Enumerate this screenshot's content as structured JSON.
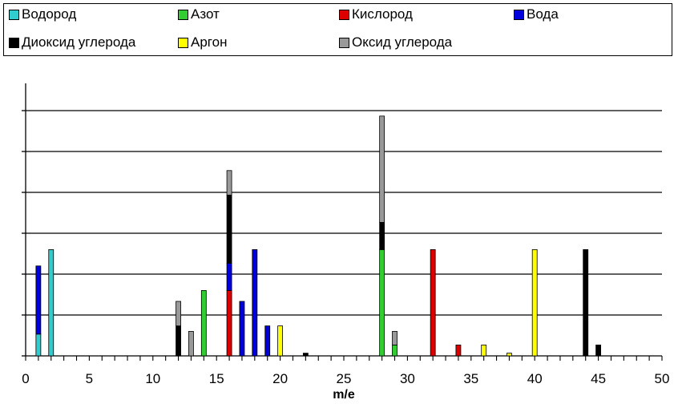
{
  "chart_data": {
    "type": "bar",
    "stacked": true,
    "xlabel": "m/e",
    "ylabel": "",
    "xlim": [
      0,
      50
    ],
    "ylim": [
      0,
      100
    ],
    "x_tick_labels": [
      0,
      5,
      10,
      15,
      20,
      25,
      30,
      35,
      40,
      45,
      50
    ],
    "x_minor_step": 1,
    "y_gridlines": [
      0,
      15,
      30,
      45,
      60,
      75,
      90
    ],
    "y_tick_labels_shown": false,
    "grid": true,
    "legend_position": "top",
    "series": [
      {
        "name": "Водород",
        "color": "#33CCCC",
        "points": [
          {
            "x": 1,
            "y": 8
          },
          {
            "x": 2,
            "y": 39
          }
        ]
      },
      {
        "name": "Азот",
        "color": "#33CC33",
        "points": [
          {
            "x": 14,
            "y": 24
          },
          {
            "x": 28,
            "y": 39
          },
          {
            "x": 29,
            "y": 4
          }
        ]
      },
      {
        "name": "Кислород",
        "color": "#DD0000",
        "points": [
          {
            "x": 16,
            "y": 24
          },
          {
            "x": 32,
            "y": 39
          },
          {
            "x": 34,
            "y": 4
          }
        ]
      },
      {
        "name": "Вода",
        "color": "#0000DD",
        "points": [
          {
            "x": 1,
            "y": 25
          },
          {
            "x": 16,
            "y": 10
          },
          {
            "x": 17,
            "y": 20
          },
          {
            "x": 18,
            "y": 39
          },
          {
            "x": 19,
            "y": 11
          }
        ]
      },
      {
        "name": "Диоксид углерода",
        "color": "#000000",
        "points": [
          {
            "x": 12,
            "y": 11
          },
          {
            "x": 16,
            "y": 25
          },
          {
            "x": 22,
            "y": 1
          },
          {
            "x": 28,
            "y": 10
          },
          {
            "x": 44,
            "y": 39
          },
          {
            "x": 45,
            "y": 4
          }
        ]
      },
      {
        "name": "Аргон",
        "color": "#FFFF00",
        "points": [
          {
            "x": 20,
            "y": 11
          },
          {
            "x": 36,
            "y": 4
          },
          {
            "x": 38,
            "y": 1
          },
          {
            "x": 40,
            "y": 39
          }
        ]
      },
      {
        "name": "Оксид углерода",
        "color": "#999999",
        "points": [
          {
            "x": 12,
            "y": 9
          },
          {
            "x": 13,
            "y": 9
          },
          {
            "x": 16,
            "y": 9
          },
          {
            "x": 28,
            "y": 39
          },
          {
            "x": 29,
            "y": 5
          }
        ]
      }
    ]
  }
}
